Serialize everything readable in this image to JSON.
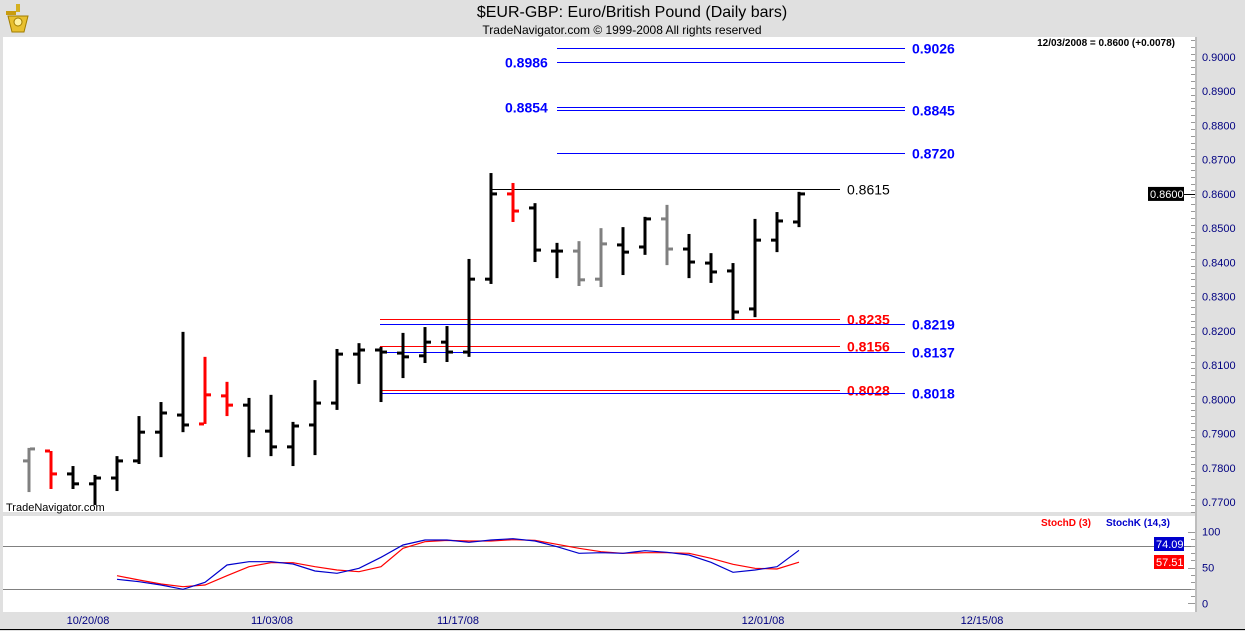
{
  "header": {
    "title": "$EUR-GBP:  Euro/British Pound  (Daily bars)",
    "subtitle": "TradeNavigator.com © 1999-2008 All rights reserved",
    "readout": "12/03/2008 = 0.8600 (+0.0078)",
    "watermark": "TradeNavigator.com",
    "logo_icon": "sextant-logo-icon"
  },
  "colors": {
    "up_bar": "#000000",
    "down_bar": "#ff0000",
    "neutral_bar": "#808080",
    "stoch_k": "#0000cc",
    "stoch_d": "#ff0000",
    "axis_text": "#000080",
    "background": "#e0e0e0"
  },
  "chart_data": [
    {
      "type": "ohlc",
      "title": "$EUR-GBP:  Euro/British Pound  (Daily bars)",
      "ylim": [
        0.765,
        0.905
      ],
      "y_ticks": [
        "0.9000",
        "0.8900",
        "0.8800",
        "0.8700",
        "0.8600",
        "0.8500",
        "0.8400",
        "0.8300",
        "0.8200",
        "0.8100",
        "0.8000",
        "0.7900",
        "0.7800",
        "0.7700"
      ],
      "y_tick_values": [
        0.9,
        0.89,
        0.88,
        0.87,
        0.86,
        0.85,
        0.84,
        0.83,
        0.82,
        0.81,
        0.8,
        0.79,
        0.78,
        0.77
      ],
      "x_ticks": [
        "10/20/08",
        "11/03/08",
        "11/17/08",
        "12/01/08",
        "12/15/08"
      ],
      "last_price_label": "0.8600",
      "bars": [
        {
          "o": 0.782,
          "h": 0.7858,
          "l": 0.7729,
          "c": 0.7855,
          "color": "neutral"
        },
        {
          "o": 0.7849,
          "h": 0.7849,
          "l": 0.7738,
          "c": 0.7782,
          "color": "down"
        },
        {
          "o": 0.7782,
          "h": 0.7805,
          "l": 0.7738,
          "c": 0.7753,
          "color": "up"
        },
        {
          "o": 0.7753,
          "h": 0.7779,
          "l": 0.7691,
          "c": 0.777,
          "color": "up"
        },
        {
          "o": 0.777,
          "h": 0.7834,
          "l": 0.7732,
          "c": 0.782,
          "color": "up"
        },
        {
          "o": 0.782,
          "h": 0.7951,
          "l": 0.7811,
          "c": 0.7904,
          "color": "up"
        },
        {
          "o": 0.7904,
          "h": 0.7992,
          "l": 0.7831,
          "c": 0.796,
          "color": "up"
        },
        {
          "o": 0.7954,
          "h": 0.8197,
          "l": 0.7904,
          "c": 0.7925,
          "color": "up"
        },
        {
          "o": 0.7928,
          "h": 0.8124,
          "l": 0.7928,
          "c": 0.8013,
          "color": "down"
        },
        {
          "o": 0.801,
          "h": 0.8051,
          "l": 0.7951,
          "c": 0.7983,
          "color": "down"
        },
        {
          "o": 0.7983,
          "h": 0.8004,
          "l": 0.7831,
          "c": 0.7907,
          "color": "up"
        },
        {
          "o": 0.7907,
          "h": 0.8013,
          "l": 0.7834,
          "c": 0.7861,
          "color": "up"
        },
        {
          "o": 0.7861,
          "h": 0.7934,
          "l": 0.7805,
          "c": 0.7922,
          "color": "up"
        },
        {
          "o": 0.7925,
          "h": 0.8056,
          "l": 0.7837,
          "c": 0.7989,
          "color": "up"
        },
        {
          "o": 0.7989,
          "h": 0.8147,
          "l": 0.7969,
          "c": 0.8132,
          "color": "up"
        },
        {
          "o": 0.8132,
          "h": 0.8164,
          "l": 0.8045,
          "c": 0.8144,
          "color": "up"
        },
        {
          "o": 0.8144,
          "h": 0.8153,
          "l": 0.7992,
          "c": 0.8138,
          "color": "up"
        },
        {
          "o": 0.8135,
          "h": 0.8194,
          "l": 0.8062,
          "c": 0.8124,
          "color": "up"
        },
        {
          "o": 0.8127,
          "h": 0.8211,
          "l": 0.8106,
          "c": 0.8167,
          "color": "up"
        },
        {
          "o": 0.8167,
          "h": 0.8214,
          "l": 0.8109,
          "c": 0.8138,
          "color": "up"
        },
        {
          "o": 0.8138,
          "h": 0.841,
          "l": 0.8124,
          "c": 0.8351,
          "color": "up"
        },
        {
          "o": 0.8351,
          "h": 0.8661,
          "l": 0.8337,
          "c": 0.86,
          "color": "up"
        },
        {
          "o": 0.86,
          "h": 0.8632,
          "l": 0.8518,
          "c": 0.855,
          "color": "down"
        },
        {
          "o": 0.8559,
          "h": 0.8573,
          "l": 0.8401,
          "c": 0.8436,
          "color": "up"
        },
        {
          "o": 0.8433,
          "h": 0.8457,
          "l": 0.8354,
          "c": 0.8433,
          "color": "up"
        },
        {
          "o": 0.8433,
          "h": 0.8462,
          "l": 0.8331,
          "c": 0.8349,
          "color": "neutral"
        },
        {
          "o": 0.8351,
          "h": 0.85,
          "l": 0.8328,
          "c": 0.8454,
          "color": "neutral"
        },
        {
          "o": 0.8451,
          "h": 0.8503,
          "l": 0.8363,
          "c": 0.843,
          "color": "up"
        },
        {
          "o": 0.8445,
          "h": 0.8533,
          "l": 0.8422,
          "c": 0.8527,
          "color": "up"
        },
        {
          "o": 0.8527,
          "h": 0.8568,
          "l": 0.8392,
          "c": 0.8439,
          "color": "neutral"
        },
        {
          "o": 0.8439,
          "h": 0.8483,
          "l": 0.8354,
          "c": 0.8401,
          "color": "up"
        },
        {
          "o": 0.8398,
          "h": 0.8427,
          "l": 0.834,
          "c": 0.8372,
          "color": "up"
        },
        {
          "o": 0.8375,
          "h": 0.8398,
          "l": 0.8232,
          "c": 0.8255,
          "color": "up"
        },
        {
          "o": 0.8264,
          "h": 0.8527,
          "l": 0.824,
          "c": 0.8465,
          "color": "up"
        },
        {
          "o": 0.8465,
          "h": 0.8547,
          "l": 0.843,
          "c": 0.8521,
          "color": "up"
        },
        {
          "o": 0.8518,
          "h": 0.8606,
          "l": 0.8503,
          "c": 0.86,
          "color": "up"
        }
      ],
      "levels": [
        {
          "value": 0.9026,
          "label": "0.9026",
          "color": "#0000ff",
          "label_side": "right"
        },
        {
          "value": 0.8986,
          "label": "0.8986",
          "color": "#0000ff",
          "label_side": "left"
        },
        {
          "value": 0.8854,
          "label": "0.8854",
          "color": "#0000ff",
          "label_side": "left"
        },
        {
          "value": 0.8845,
          "label": "0.8845",
          "color": "#0000ff",
          "label_side": "right"
        },
        {
          "value": 0.872,
          "label": "0.8720",
          "color": "#0000ff",
          "label_side": "right"
        },
        {
          "value": 0.8615,
          "label": "0.8615",
          "color": "#000000",
          "label_side": "right"
        },
        {
          "value": 0.8235,
          "label": "0.8235",
          "color": "#ff0000",
          "label_side": "right"
        },
        {
          "value": 0.8219,
          "label": "0.8219",
          "color": "#0000ff",
          "label_side": "right"
        },
        {
          "value": 0.8156,
          "label": "0.8156",
          "color": "#ff0000",
          "label_side": "right"
        },
        {
          "value": 0.8137,
          "label": "0.8137",
          "color": "#0000ff",
          "label_side": "right"
        },
        {
          "value": 0.8028,
          "label": "0.8028",
          "color": "#ff0000",
          "label_side": "right"
        },
        {
          "value": 0.8018,
          "label": "0.8018",
          "color": "#0000ff",
          "label_side": "right"
        }
      ]
    },
    {
      "type": "line",
      "ylim": [
        0,
        100
      ],
      "y_ticks": [
        "100",
        "50",
        "0"
      ],
      "y_tick_values": [
        100,
        50,
        0
      ],
      "reference_lines": [
        80,
        20
      ],
      "series": [
        {
          "name": "StochD (3)",
          "color": "#ff0000",
          "last_label": "57.51",
          "values": [
            38.6,
            32.6,
            27.0,
            23.3,
            25.7,
            38.6,
            51.2,
            56.8,
            56.8,
            51.2,
            46.6,
            44.2,
            51.2,
            76.8,
            86.0,
            87.8,
            87.0,
            87.0,
            88.9,
            87.8,
            82.4,
            76.8,
            72.1,
            69.9,
            70.7,
            70.7,
            69.9,
            62.9,
            54.5,
            48.9,
            48.0,
            57.51
          ]
        },
        {
          "name": "StochK (14,3)",
          "color": "#0000cc",
          "last_label": "74.09",
          "values": [
            33.6,
            30.3,
            25.7,
            19.7,
            29.4,
            53.6,
            58.2,
            58.2,
            55.0,
            45.2,
            42.0,
            49.0,
            64.3,
            81.4,
            88.4,
            88.4,
            85.2,
            88.4,
            90.2,
            87.0,
            79.1,
            69.9,
            70.7,
            69.9,
            73.5,
            71.3,
            67.5,
            57.3,
            43.4,
            46.6,
            51.2,
            74.09
          ]
        }
      ]
    }
  ]
}
